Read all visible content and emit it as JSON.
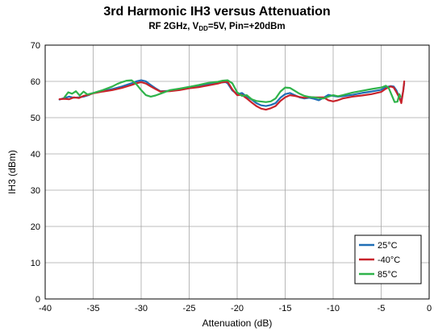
{
  "chart_data": {
    "type": "line",
    "title": "3rd Harmonic IH3 versus Attenuation",
    "subtitle": {
      "prefix": "RF 2GHz, V",
      "sub": "DD",
      "suffix": "=5V, Pin=+20dBm"
    },
    "xlabel": "Attenuation (dB)",
    "ylabel": "IH3 (dBm)",
    "xlim": [
      -40,
      0
    ],
    "ylim": [
      0,
      70
    ],
    "xticks": [
      -40,
      -35,
      -30,
      -25,
      -20,
      -15,
      -10,
      -5,
      0
    ],
    "yticks": [
      0,
      10,
      20,
      30,
      40,
      50,
      60,
      70
    ],
    "grid": true,
    "legend_position": "bottom-right",
    "series": [
      {
        "name": "25°C",
        "color": "#1f6eb5",
        "points": [
          [
            -38.5,
            55
          ],
          [
            -38,
            55.4
          ],
          [
            -37.5,
            55.8
          ],
          [
            -37,
            55.5
          ],
          [
            -36.5,
            55.6
          ],
          [
            -36,
            55.8
          ],
          [
            -35.5,
            56.2
          ],
          [
            -35,
            56.8
          ],
          [
            -34,
            57.3
          ],
          [
            -33,
            57.9
          ],
          [
            -32,
            58.6
          ],
          [
            -31,
            59.5
          ],
          [
            -30.5,
            60
          ],
          [
            -30,
            60.3
          ],
          [
            -29.5,
            60
          ],
          [
            -29,
            59
          ],
          [
            -28.5,
            58.1
          ],
          [
            -28,
            57.3
          ],
          [
            -27,
            57.4
          ],
          [
            -26,
            57.9
          ],
          [
            -25,
            58.5
          ],
          [
            -24,
            58.8
          ],
          [
            -23,
            59.2
          ],
          [
            -22,
            59.6
          ],
          [
            -21.2,
            59.8
          ],
          [
            -21,
            59.5
          ],
          [
            -20.5,
            57.5
          ],
          [
            -20,
            56.5
          ],
          [
            -19.5,
            56.8
          ],
          [
            -19,
            55.8
          ],
          [
            -18.5,
            55
          ],
          [
            -18,
            54
          ],
          [
            -17.5,
            53.4
          ],
          [
            -17,
            53.2
          ],
          [
            -16.5,
            53.5
          ],
          [
            -16,
            54
          ],
          [
            -15.5,
            55.5
          ],
          [
            -15,
            56.5
          ],
          [
            -14.5,
            56.8
          ],
          [
            -14,
            56.2
          ],
          [
            -13.5,
            55.6
          ],
          [
            -13,
            55.3
          ],
          [
            -12.5,
            55.5
          ],
          [
            -12,
            55.2
          ],
          [
            -11.5,
            54.8
          ],
          [
            -11,
            55.5
          ],
          [
            -10.5,
            56.3
          ],
          [
            -10,
            56
          ],
          [
            -9.5,
            55.8
          ],
          [
            -9,
            55.9
          ],
          [
            -8,
            56.3
          ],
          [
            -7,
            56.8
          ],
          [
            -6,
            57.2
          ],
          [
            -5,
            57.7
          ],
          [
            -4.5,
            58.4
          ],
          [
            -4,
            58.7
          ],
          [
            -3.7,
            58.6
          ],
          [
            -3.4,
            57.5
          ],
          [
            -3.1,
            55.5
          ],
          [
            -2.9,
            54.7
          ],
          [
            -2.7,
            57.5
          ],
          [
            -2.6,
            59.5
          ]
        ]
      },
      {
        "name": "-40°C",
        "color": "#c8232b",
        "points": [
          [
            -38.5,
            55.1
          ],
          [
            -38,
            55.2
          ],
          [
            -37.5,
            55.1
          ],
          [
            -37,
            55.6
          ],
          [
            -36.5,
            55.4
          ],
          [
            -36,
            56
          ],
          [
            -35.5,
            56.3
          ],
          [
            -35,
            56.7
          ],
          [
            -34,
            57.2
          ],
          [
            -33,
            57.6
          ],
          [
            -32,
            58.2
          ],
          [
            -31,
            59
          ],
          [
            -30.5,
            59.5
          ],
          [
            -30,
            59.8
          ],
          [
            -29.5,
            59.4
          ],
          [
            -29,
            58.6
          ],
          [
            -28.5,
            57.9
          ],
          [
            -28,
            57.2
          ],
          [
            -27,
            57.3
          ],
          [
            -26,
            57.6
          ],
          [
            -25,
            58.1
          ],
          [
            -24,
            58.4
          ],
          [
            -23,
            58.9
          ],
          [
            -22,
            59.4
          ],
          [
            -21.5,
            59.8
          ],
          [
            -21,
            59.9
          ],
          [
            -20.5,
            57.8
          ],
          [
            -20,
            56.2
          ],
          [
            -19.5,
            56.3
          ],
          [
            -19,
            55.3
          ],
          [
            -18.5,
            54.2
          ],
          [
            -18,
            53.2
          ],
          [
            -17.5,
            52.5
          ],
          [
            -17,
            52.2
          ],
          [
            -16.5,
            52.6
          ],
          [
            -16,
            53.2
          ],
          [
            -15.5,
            54.6
          ],
          [
            -15,
            55.6
          ],
          [
            -14.5,
            56.2
          ],
          [
            -14,
            56
          ],
          [
            -13.5,
            55.7
          ],
          [
            -13,
            55.5
          ],
          [
            -12.5,
            55.7
          ],
          [
            -12,
            55.6
          ],
          [
            -11,
            55.6
          ],
          [
            -10.5,
            54.8
          ],
          [
            -10,
            54.5
          ],
          [
            -9.5,
            54.8
          ],
          [
            -9,
            55.3
          ],
          [
            -8,
            55.8
          ],
          [
            -7,
            56.1
          ],
          [
            -6,
            56.5
          ],
          [
            -5,
            57.1
          ],
          [
            -4.5,
            58
          ],
          [
            -4,
            58.6
          ],
          [
            -3.7,
            58.3
          ],
          [
            -3.4,
            57
          ],
          [
            -3.1,
            55.5
          ],
          [
            -2.9,
            54
          ],
          [
            -2.7,
            57.5
          ],
          [
            -2.6,
            60
          ]
        ]
      },
      {
        "name": "85°C",
        "color": "#2fb34a",
        "points": [
          [
            -38,
            55.6
          ],
          [
            -37.6,
            57
          ],
          [
            -37.2,
            56.6
          ],
          [
            -36.8,
            57.3
          ],
          [
            -36.4,
            56.1
          ],
          [
            -36,
            57.2
          ],
          [
            -35.6,
            56.4
          ],
          [
            -35,
            56.8
          ],
          [
            -34,
            57.6
          ],
          [
            -33,
            58.6
          ],
          [
            -32.5,
            59.3
          ],
          [
            -32,
            59.8
          ],
          [
            -31.5,
            60.2
          ],
          [
            -31,
            60.3
          ],
          [
            -30.5,
            59.2
          ],
          [
            -30,
            57.6
          ],
          [
            -29.5,
            56.2
          ],
          [
            -29,
            55.8
          ],
          [
            -28.5,
            56.1
          ],
          [
            -28,
            56.6
          ],
          [
            -27,
            57.6
          ],
          [
            -26,
            58
          ],
          [
            -25,
            58.5
          ],
          [
            -24,
            59
          ],
          [
            -23,
            59.6
          ],
          [
            -22,
            59.9
          ],
          [
            -21.5,
            60.2
          ],
          [
            -21,
            60.3
          ],
          [
            -20.5,
            59.5
          ],
          [
            -20,
            57
          ],
          [
            -19.5,
            56
          ],
          [
            -19,
            56.2
          ],
          [
            -18.5,
            55.1
          ],
          [
            -18,
            54.6
          ],
          [
            -17,
            54.3
          ],
          [
            -16.5,
            54.5
          ],
          [
            -16,
            55.3
          ],
          [
            -15.5,
            57.2
          ],
          [
            -15,
            58.3
          ],
          [
            -14.5,
            58.2
          ],
          [
            -14,
            57.4
          ],
          [
            -13.5,
            56.6
          ],
          [
            -13,
            56
          ],
          [
            -12.5,
            55.7
          ],
          [
            -12,
            55.6
          ],
          [
            -11.5,
            55.4
          ],
          [
            -11,
            55.3
          ],
          [
            -10.5,
            55.8
          ],
          [
            -10,
            56.2
          ],
          [
            -9.5,
            55.9
          ],
          [
            -9,
            56.2
          ],
          [
            -8,
            56.9
          ],
          [
            -7,
            57.4
          ],
          [
            -6,
            57.9
          ],
          [
            -5,
            58.3
          ],
          [
            -4.5,
            58.8
          ],
          [
            -4.2,
            58.1
          ],
          [
            -3.9,
            56.2
          ],
          [
            -3.6,
            54.3
          ],
          [
            -3.3,
            54.4
          ],
          [
            -3.1,
            56.5
          ],
          [
            -3,
            55.8
          ]
        ]
      }
    ]
  }
}
